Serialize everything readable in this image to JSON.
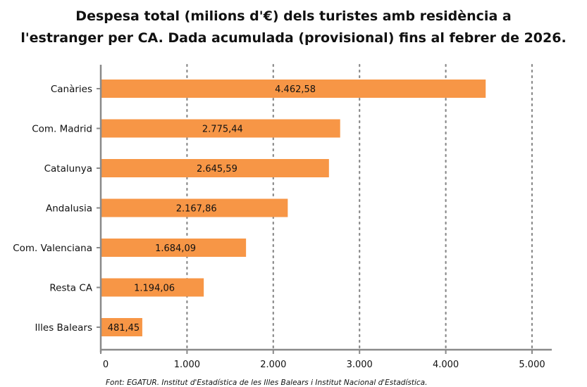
{
  "chart_data": {
    "type": "bar",
    "orientation": "horizontal",
    "title_line1": "Despesa total (milions d'€) dels turistes amb residència a",
    "title_line2": "l'estranger per CA. Dada acumulada (provisional) fins al febrer de 2026.",
    "categories": [
      "Canàries",
      "Com. Madrid",
      "Catalunya",
      "Andalusia",
      "Com. Valenciana",
      "Resta CA",
      "Illes Balears"
    ],
    "values": [
      4462.58,
      2775.44,
      2645.59,
      2167.86,
      1684.09,
      1194.06,
      481.45
    ],
    "value_labels": [
      "4.462,58",
      "2.775,44",
      "2.645,59",
      "2.167,86",
      "1.684,09",
      "1.194,06",
      "481,45"
    ],
    "x_ticks": [
      0,
      1000,
      2000,
      3000,
      4000,
      5000
    ],
    "x_tick_labels": [
      "0",
      "1.000",
      "2.000",
      "3.000",
      "4.000",
      "5.000"
    ],
    "xlim": [
      0,
      5000
    ],
    "grid": "vertical-dotted",
    "bar_color": "#F79646",
    "source": "Font: EGATUR. Institut d'Estadística de les Illes Balears i Institut Nacional d'Estadística."
  }
}
